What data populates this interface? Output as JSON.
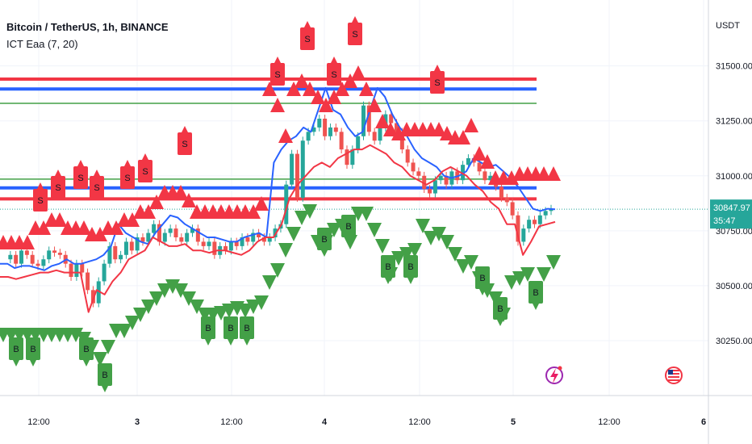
{
  "header": {
    "title": "Bitcoin / TetherUS, 1h, BINANCE",
    "indicator": "ICT Eaa (7, 20)",
    "currency": "USDT"
  },
  "price_tag": {
    "price": "30847.97",
    "countdown": "35:47"
  },
  "colors": {
    "up": "#26a69a",
    "down": "#ef5350",
    "blue": "#2962ff",
    "red_line": "#f23645",
    "green_line": "#43a047",
    "sell": "#f23645",
    "buy": "#43a047"
  },
  "icons": [
    "lightning-icon",
    "us-flag-icon"
  ],
  "chart_data": {
    "type": "candlestick",
    "y_ticks": [
      "31500.00",
      "31250.00",
      "31000.00",
      "30750.00",
      "30500.00",
      "30250.00"
    ],
    "x_ticks": [
      "12:00",
      "3",
      "12:00",
      "4",
      "12:00",
      "5",
      "12:00",
      "6"
    ],
    "ylim": [
      30000,
      31800
    ],
    "horizontal_levels": [
      {
        "y": 31440,
        "color": "red"
      },
      {
        "y": 31395,
        "color": "blue"
      },
      {
        "y": 31330,
        "color": "green"
      },
      {
        "y": 30985,
        "color": "green"
      },
      {
        "y": 30945,
        "color": "blue"
      },
      {
        "y": 30895,
        "color": "red"
      }
    ],
    "close_series": [
      30620,
      30640,
      30600,
      30660,
      30640,
      30600,
      30590,
      30620,
      30660,
      30650,
      30640,
      30600,
      30540,
      30600,
      30560,
      30480,
      30420,
      30520,
      30600,
      30680,
      30620,
      30640,
      30700,
      30660,
      30720,
      30700,
      30740,
      30780,
      30700,
      30740,
      30760,
      30720,
      30700,
      30740,
      30760,
      30700,
      30680,
      30700,
      30640,
      30680,
      30660,
      30700,
      30680,
      30720,
      30700,
      30740,
      30720,
      30700,
      30720,
      30760,
      30780,
      30960,
      31100,
      30900,
      31160,
      31200,
      31220,
      31260,
      31180,
      31220,
      31200,
      31120,
      31050,
      31120,
      31180,
      31320,
      31200,
      31160,
      31220,
      31280,
      31240,
      31200,
      31120,
      31060,
      31020,
      31000,
      30940,
      30920,
      30980,
      31000,
      30960,
      31020,
      30980,
      31050,
      31080,
      31060,
      31020,
      30980,
      31000,
      30950,
      30900,
      30880,
      30820,
      30700,
      30760,
      30800,
      30780,
      30820,
      30840,
      30850
    ],
    "blue_line": [
      30600,
      30600,
      30580,
      30590,
      30590,
      30580,
      30570,
      30590,
      30600,
      30620,
      30600,
      30600,
      30610,
      30620,
      30640,
      30680,
      30780,
      30740,
      30720,
      30700,
      30690,
      30740,
      30780,
      30820,
      30810,
      30780,
      30760,
      30740,
      30720,
      30720,
      30710,
      30700,
      30700,
      30720,
      30730,
      30740,
      30720,
      31060,
      31120,
      31160,
      31180,
      31220,
      31200,
      31300,
      31400,
      31300,
      31280,
      31220,
      31180,
      31200,
      31300,
      31400,
      31360,
      31280,
      31220,
      31180,
      31120,
      31080,
      31060,
      31040,
      31000,
      30990,
      31000,
      31020,
      31080,
      31060,
      31040,
      31050,
      31020,
      30990,
      30950,
      30900,
      30850,
      30840,
      30850,
      30848
    ],
    "red_line": [
      30540,
      30540,
      30530,
      30540,
      30550,
      30560,
      30560,
      30570,
      30560,
      30560,
      30560,
      30380,
      30480,
      30460,
      30520,
      30560,
      30620,
      30640,
      30660,
      30720,
      30700,
      30680,
      30680,
      30690,
      30660,
      30660,
      30650,
      30660,
      30660,
      30650,
      30640,
      30660,
      30700,
      30720,
      30720,
      30780,
      30900,
      30960,
      31000,
      31040,
      31060,
      31040,
      31080,
      31100,
      31120,
      31120,
      31140,
      31120,
      31100,
      31060,
      31040,
      31000,
      30980,
      30960,
      30980,
      31020,
      31040,
      31020,
      31000,
      30960,
      30930,
      30880,
      30850,
      30780,
      30780,
      30640,
      30700,
      30770,
      30780,
      30790
    ]
  }
}
